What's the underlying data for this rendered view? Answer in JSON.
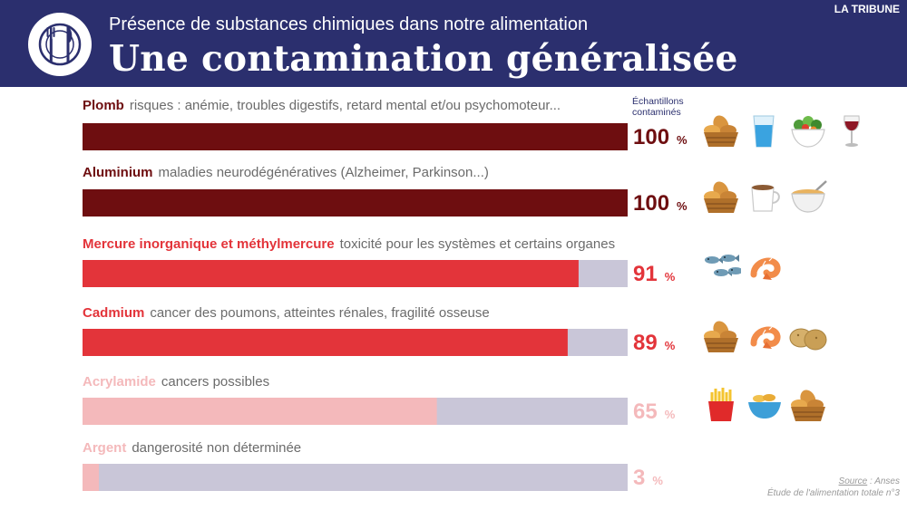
{
  "header": {
    "supertitle": "Présence de substances chimiques dans notre alimentation",
    "title": "Une contamination généralisée",
    "brand": "LA TRIBUNE",
    "logo_icon": "fork-knife-plate-icon"
  },
  "value_header": {
    "line1": "Échantillons",
    "line2": "contaminés"
  },
  "colors": {
    "header_bg": "#2b2f6e",
    "bar_remainder": "#c9c6d8",
    "dark_red": "#6e0e10",
    "red": "#e3343a",
    "pink": "#f4b9bb"
  },
  "chart_data": {
    "type": "bar",
    "orientation": "horizontal",
    "unit": "%",
    "xlim": [
      0,
      100
    ],
    "categories": [
      "Plomb",
      "Aluminium",
      "Mercure inorganique et méthylmercure",
      "Cadmium",
      "Acrylamide",
      "Argent"
    ],
    "descriptions": [
      "risques : anémie, troubles digestifs, retard mental et/ou psychomoteur...",
      "maladies neurodégénératives (Alzheimer, Parkinson...)",
      "toxicité pour les systèmes et certains organes",
      "cancer des poumons, atteintes rénales, fragilité osseuse",
      "cancers possibles",
      "dangerosité non déterminée"
    ],
    "values": [
      100,
      100,
      91,
      89,
      65,
      3
    ],
    "value_labels": [
      "100",
      "100",
      "91",
      "89",
      "65",
      "3"
    ],
    "bar_colors": [
      "#6e0e10",
      "#6e0e10",
      "#e3343a",
      "#e3343a",
      "#f4b9bb",
      "#f4b9bb"
    ],
    "food_icons": [
      [
        "bread-basket-icon",
        "water-glass-icon",
        "salad-bowl-icon",
        "wine-glass-icon"
      ],
      [
        "bread-basket-icon",
        "coffee-cup-icon",
        "soup-bowl-icon"
      ],
      [
        "fish-icon",
        "shrimp-icon"
      ],
      [
        "bread-basket-icon",
        "shrimp-icon",
        "potato-icon"
      ],
      [
        "fries-icon",
        "chips-bowl-icon",
        "bread-basket-icon"
      ],
      []
    ]
  },
  "source": {
    "label": "Source",
    "separator": " : ",
    "name": "Anses",
    "study": "Étude de l'alimentation totale n°3"
  }
}
